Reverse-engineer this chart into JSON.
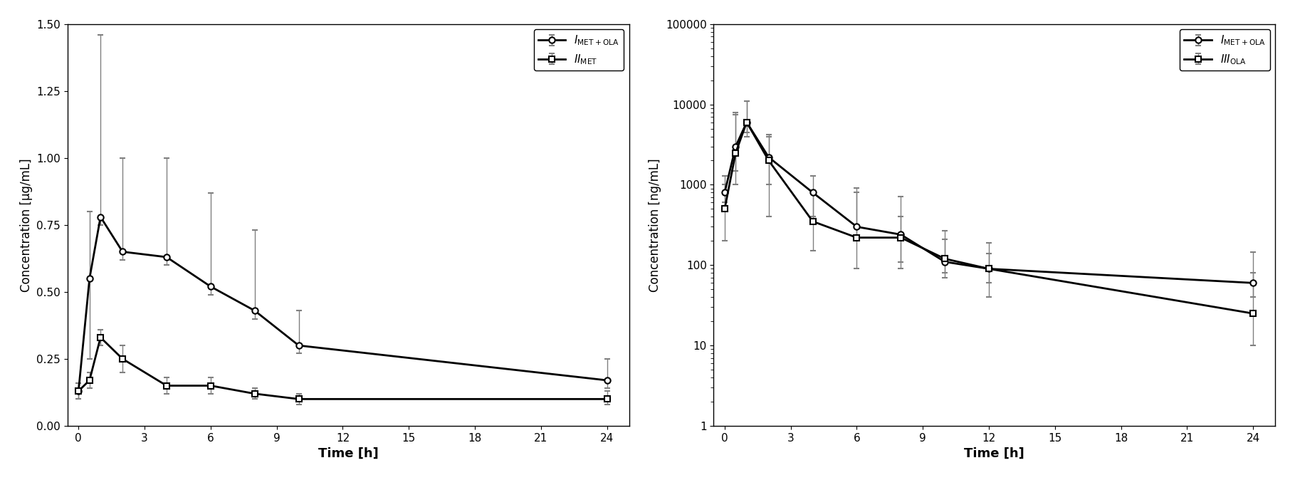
{
  "left": {
    "ylabel": "Concentration [µg/mL]",
    "xlabel": "Time [h]",
    "xlim": [
      -0.5,
      25
    ],
    "ylim": [
      0.0,
      1.5
    ],
    "yticks": [
      0.0,
      0.25,
      0.5,
      0.75,
      1.0,
      1.25,
      1.5
    ],
    "xticks": [
      0,
      3,
      6,
      9,
      12,
      15,
      18,
      21,
      24
    ],
    "series1": {
      "label_main": "I",
      "label_sub": "MET+OLA",
      "marker": "o",
      "x": [
        0,
        0.5,
        1,
        2,
        4,
        6,
        8,
        10,
        24
      ],
      "y": [
        0.13,
        0.55,
        0.78,
        0.65,
        0.63,
        0.52,
        0.43,
        0.3,
        0.17
      ],
      "yerr_lo": [
        0.03,
        0.3,
        0.03,
        0.03,
        0.03,
        0.03,
        0.03,
        0.03,
        0.03
      ],
      "yerr_hi": [
        0.03,
        0.25,
        0.68,
        0.35,
        0.37,
        0.35,
        0.3,
        0.13,
        0.08
      ]
    },
    "series2": {
      "label_main": "II",
      "label_sub": "MET",
      "marker": "s",
      "x": [
        0,
        0.5,
        1,
        2,
        4,
        6,
        8,
        10,
        24
      ],
      "y": [
        0.13,
        0.17,
        0.33,
        0.25,
        0.15,
        0.15,
        0.12,
        0.1,
        0.1
      ],
      "yerr_lo": [
        0.03,
        0.03,
        0.03,
        0.05,
        0.03,
        0.03,
        0.02,
        0.02,
        0.02
      ],
      "yerr_hi": [
        0.03,
        0.03,
        0.03,
        0.05,
        0.03,
        0.03,
        0.02,
        0.02,
        0.03
      ]
    }
  },
  "right": {
    "ylabel": "Concentration [ng/mL]",
    "xlabel": "Time [h]",
    "xlim": [
      -0.5,
      25
    ],
    "ylim_log": [
      1,
      100000
    ],
    "yticks_log": [
      1,
      10,
      100,
      1000,
      10000,
      100000
    ],
    "xticks": [
      0,
      3,
      6,
      9,
      12,
      15,
      18,
      21,
      24
    ],
    "series1": {
      "label_main": "I",
      "label_sub": "MET+OLA",
      "marker": "o",
      "x": [
        0,
        0.5,
        1,
        2,
        4,
        6,
        8,
        10,
        12,
        24
      ],
      "y": [
        800,
        3000,
        6000,
        2200,
        800,
        300,
        240,
        110,
        90,
        60
      ],
      "yerr_lo": [
        200,
        1500,
        1500,
        1200,
        400,
        100,
        130,
        30,
        30,
        20
      ],
      "yerr_hi": [
        500,
        5000,
        5000,
        2000,
        500,
        500,
        160,
        100,
        50,
        20
      ]
    },
    "series2": {
      "label_main": "III",
      "label_sub": "OLA",
      "marker": "s",
      "x": [
        0,
        0.5,
        1,
        2,
        4,
        6,
        8,
        10,
        12,
        24
      ],
      "y": [
        500,
        2500,
        6000,
        2000,
        350,
        220,
        220,
        120,
        90,
        25
      ],
      "yerr_lo": [
        300,
        1500,
        2000,
        1600,
        200,
        130,
        130,
        50,
        50,
        15
      ],
      "yerr_hi": [
        500,
        5000,
        5000,
        2000,
        500,
        700,
        500,
        150,
        100,
        120
      ]
    }
  },
  "line_color": "#000000",
  "marker_size": 6,
  "line_width": 2.0,
  "error_color": "#808080",
  "error_lw": 1.0,
  "capsize": 3
}
